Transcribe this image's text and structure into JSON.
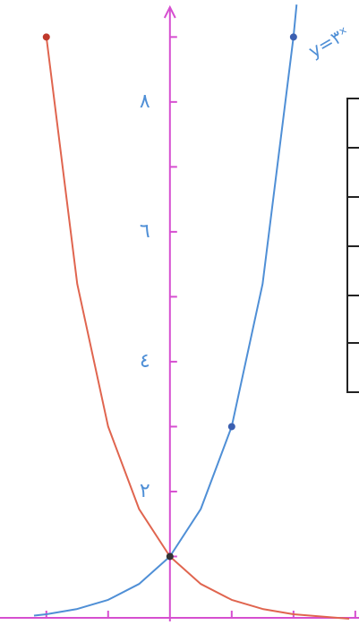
{
  "chart_data": {
    "type": "line",
    "annotation": "y=۳ˣ",
    "axis_color": "#d64fd0",
    "xlim": [
      -2.75,
      3.06
    ],
    "ylim": [
      0,
      9.57
    ],
    "xtick_marks": [
      -2,
      -1,
      1,
      2,
      3
    ],
    "ytick_marks": [
      1,
      2,
      3,
      4,
      5,
      6,
      7,
      8,
      9
    ],
    "yticks": [
      {
        "value": 2,
        "label": "٢"
      },
      {
        "value": 4,
        "label": "٤"
      },
      {
        "value": 6,
        "label": "٦"
      },
      {
        "value": 8,
        "label": "٨"
      }
    ],
    "series": [
      {
        "color": "#4f8fd6",
        "x": [
          -2.2,
          -2,
          -1.5,
          -1,
          -0.5,
          0,
          0.5,
          1,
          1.5,
          2,
          2.05
        ],
        "values": [
          0.089,
          0.111,
          0.192,
          0.333,
          0.577,
          1,
          1.732,
          3,
          5.196,
          9,
          9.5
        ]
      },
      {
        "color": "#e0654f",
        "x": [
          -2,
          -1.5,
          -1,
          -0.5,
          0,
          0.5,
          1,
          1.5,
          2,
          2.9
        ],
        "values": [
          9,
          5.196,
          3,
          1.732,
          1,
          0.577,
          0.333,
          0.192,
          0.111,
          0.041
        ]
      }
    ],
    "points": [
      {
        "x": 0,
        "y": 1,
        "color": "#333333"
      },
      {
        "x": 1,
        "y": 3,
        "color": "#3b5fb0"
      },
      {
        "x": 2,
        "y": 9,
        "color": "#3b5fb0"
      },
      {
        "x": -2,
        "y": 9,
        "color": "#c0392b"
      }
    ]
  }
}
